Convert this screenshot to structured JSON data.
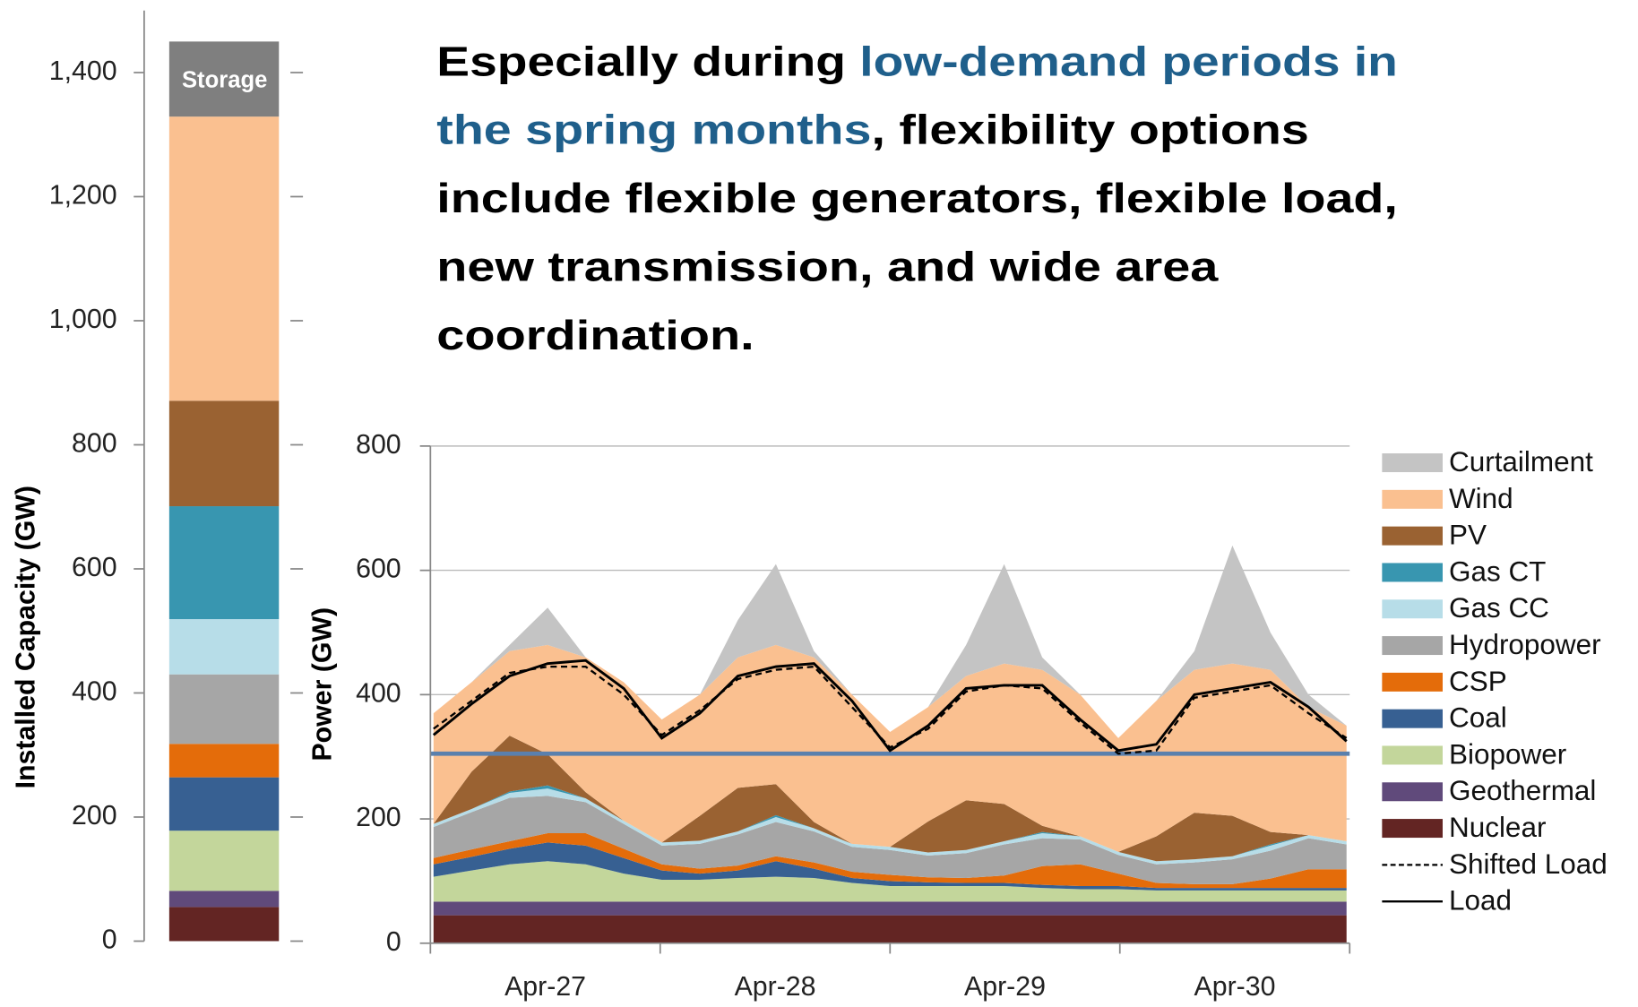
{
  "heading": {
    "lines": [
      [
        {
          "text": "Especially during ",
          "color": "#000000"
        },
        {
          "text": "low-demand periods in",
          "color": "#1f5f8b"
        }
      ],
      [
        {
          "text": "the spring months",
          "color": "#1f5f8b"
        },
        {
          "text": ", flexibility options",
          "color": "#000000"
        }
      ],
      [
        {
          "text": "include flexible generators, flexible load,",
          "color": "#000000"
        }
      ],
      [
        {
          "text": "new transmission, and wide area",
          "color": "#000000"
        }
      ],
      [
        {
          "text": "coordination.",
          "color": "#000000"
        }
      ]
    ]
  },
  "chart_data": [
    {
      "type": "bar",
      "ylabel": "Installed Capacity (GW)",
      "ylim": [
        0,
        1500
      ],
      "yticks": [
        0,
        200,
        400,
        600,
        800,
        {
          "value": 1000,
          "label": "1,000"
        },
        {
          "value": 1200,
          "label": "1,200"
        },
        {
          "value": 1400,
          "label": "1,400"
        }
      ],
      "segments": [
        {
          "color": "#632523",
          "value": 55
        },
        {
          "color": "#604a7b",
          "value": 26
        },
        {
          "color": "#c3d69b",
          "value": 97
        },
        {
          "color": "#376092",
          "value": 86
        },
        {
          "color": "#e46c0a",
          "value": 54
        },
        {
          "color": "#a6a6a6",
          "value": 112
        },
        {
          "color": "#b7dde8",
          "value": 89
        },
        {
          "color": "#3896b0",
          "value": 182
        },
        {
          "color": "#9a6232",
          "value": 170
        },
        {
          "color": "#fac090",
          "value": 458
        },
        {
          "color": "#7f7f7f",
          "value": 121,
          "label": "Storage"
        }
      ]
    },
    {
      "type": "stacked_area",
      "ylabel": "Power (GW)",
      "xlim": [
        0,
        96
      ],
      "ylim": [
        0,
        800
      ],
      "yticks": [
        0,
        200,
        400,
        600,
        800
      ],
      "xticks": [
        0,
        24,
        48,
        72,
        96
      ],
      "categories": [
        "Apr-27",
        "Apr-28",
        "Apr-29",
        "Apr-30"
      ],
      "grid": true,
      "x": [
        0,
        4,
        8,
        12,
        16,
        20,
        24,
        28,
        32,
        36,
        40,
        44,
        48,
        52,
        56,
        60,
        64,
        68,
        72,
        76,
        80,
        84,
        88,
        92,
        96
      ],
      "series": [
        {
          "name": "Curtailment",
          "color": "#c4c4c4",
          "values": [
            0,
            0,
            10,
            60,
            0,
            0,
            0,
            0,
            60,
            130,
            10,
            0,
            0,
            0,
            50,
            160,
            20,
            0,
            0,
            0,
            30,
            190,
            60,
            20,
            0
          ]
        },
        {
          "name": "Wind",
          "color": "#fac090",
          "values": [
            178,
            144,
            136,
            176,
            217,
            223,
            198,
            195,
            210,
            224,
            265,
            240,
            185,
            184,
            200,
            226,
            251,
            228,
            183,
            218,
            230,
            245,
            261,
            206,
            186
          ]
        },
        {
          "name": "PV",
          "color": "#9a6232",
          "values": [
            0,
            60,
            90,
            50,
            10,
            0,
            0,
            40,
            70,
            50,
            10,
            0,
            0,
            50,
            80,
            60,
            10,
            0,
            0,
            40,
            75,
            65,
            20,
            0,
            0
          ]
        },
        {
          "name": "Gas CT",
          "color": "#3896b0",
          "values": [
            0,
            0,
            2,
            5,
            0,
            0,
            0,
            0,
            0,
            3,
            0,
            0,
            0,
            0,
            0,
            0,
            2,
            0,
            0,
            0,
            0,
            0,
            2,
            0,
            0
          ]
        },
        {
          "name": "Gas CC",
          "color": "#b7dde8",
          "values": [
            5,
            5,
            8,
            12,
            6,
            5,
            5,
            5,
            5,
            8,
            5,
            5,
            5,
            5,
            5,
            5,
            8,
            5,
            5,
            5,
            5,
            5,
            8,
            5,
            5
          ]
        },
        {
          "name": "Hydropower",
          "color": "#a6a6a6",
          "values": [
            50,
            60,
            70,
            60,
            50,
            40,
            30,
            40,
            50,
            55,
            50,
            40,
            40,
            35,
            40,
            50,
            45,
            40,
            30,
            30,
            35,
            40,
            45,
            50,
            40
          ]
        },
        {
          "name": "CSP",
          "color": "#e46c0a",
          "values": [
            10,
            12,
            12,
            15,
            20,
            15,
            10,
            8,
            8,
            8,
            10,
            10,
            10,
            8,
            8,
            12,
            30,
            35,
            20,
            8,
            6,
            6,
            15,
            30,
            30
          ]
        },
        {
          "name": "Coal",
          "color": "#376092",
          "values": [
            20,
            22,
            25,
            30,
            30,
            25,
            15,
            10,
            12,
            25,
            15,
            8,
            8,
            6,
            5,
            5,
            5,
            5,
            5,
            4,
            4,
            4,
            4,
            4,
            4
          ]
        },
        {
          "name": "Biopower",
          "color": "#c3d69b",
          "values": [
            40,
            50,
            60,
            65,
            60,
            45,
            35,
            35,
            38,
            40,
            38,
            30,
            25,
            25,
            25,
            25,
            22,
            20,
            20,
            18,
            18,
            18,
            18,
            18,
            18
          ]
        },
        {
          "name": "Geothermal",
          "color": "#604a7b",
          "values": [
            22,
            22,
            22,
            22,
            22,
            22,
            22,
            22,
            22,
            22,
            22,
            22,
            22,
            22,
            22,
            22,
            22,
            22,
            22,
            22,
            22,
            22,
            22,
            22,
            22
          ]
        },
        {
          "name": "Nuclear",
          "color": "#632523",
          "values": [
            45,
            45,
            45,
            45,
            45,
            45,
            45,
            45,
            45,
            45,
            45,
            45,
            45,
            45,
            45,
            45,
            45,
            45,
            45,
            45,
            45,
            45,
            45,
            45,
            45
          ]
        }
      ],
      "lines": [
        {
          "name": "Shifted Load",
          "color": "#000000",
          "dashed": true,
          "values": [
            345,
            390,
            435,
            445,
            445,
            400,
            335,
            375,
            425,
            440,
            445,
            380,
            315,
            345,
            405,
            415,
            410,
            355,
            305,
            310,
            395,
            405,
            415,
            370,
            330
          ]
        },
        {
          "name": "Load",
          "color": "#000000",
          "dashed": false,
          "values": [
            335,
            385,
            430,
            450,
            455,
            410,
            330,
            370,
            430,
            445,
            450,
            390,
            310,
            350,
            410,
            415,
            415,
            360,
            310,
            320,
            400,
            410,
            420,
            380,
            325
          ]
        }
      ],
      "hline": {
        "value": 305,
        "color": "#5a80ad"
      }
    }
  ]
}
